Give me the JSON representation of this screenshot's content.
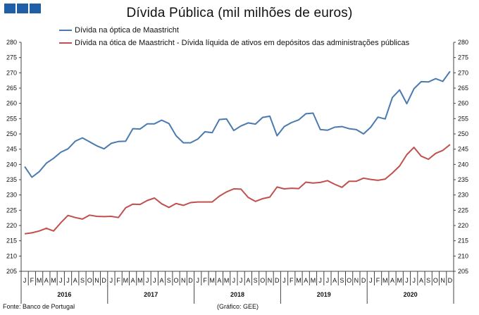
{
  "header": {
    "logo_icon": "three-blue-squares",
    "logo_color": "#1f5fa8"
  },
  "footer": {
    "source": "Fonte: Banco de Portugal",
    "credit": "(Gráfico: GEE)"
  },
  "chart_data": {
    "type": "line",
    "title": "Dívida Pública (mil milhões de euros)",
    "xlabel": "",
    "ylabel": "",
    "ylim": [
      205,
      280
    ],
    "yticks": [
      205,
      210,
      215,
      220,
      225,
      230,
      235,
      240,
      245,
      250,
      255,
      260,
      265,
      270,
      275,
      280
    ],
    "y_axis_sides": "left-and-right",
    "grid": false,
    "legend_position": "top-left",
    "month_labels": [
      "J",
      "F",
      "M",
      "A",
      "M",
      "J",
      "J",
      "A",
      "S",
      "O",
      "N",
      "D"
    ],
    "years": [
      "2016",
      "2017",
      "2018",
      "2019",
      "2020"
    ],
    "series": [
      {
        "name": "Dívida na óptica de Maastricht",
        "color": "#4a7ab0",
        "values": [
          239.3,
          235.8,
          237.6,
          240.4,
          242.0,
          244.0,
          245.1,
          247.6,
          248.7,
          247.4,
          246.1,
          245.1,
          246.9,
          247.5,
          247.6,
          251.7,
          251.6,
          253.3,
          253.3,
          254.5,
          253.4,
          249.4,
          247.1,
          247.1,
          248.3,
          250.7,
          250.4,
          254.7,
          254.9,
          251.1,
          252.6,
          253.6,
          253.2,
          255.4,
          255.8,
          249.4,
          252.4,
          253.7,
          254.6,
          256.6,
          256.8,
          251.4,
          251.2,
          252.2,
          252.4,
          251.7,
          251.4,
          250.0,
          252.2,
          255.5,
          254.9,
          261.9,
          264.4,
          259.9,
          264.8,
          267.1,
          267.0,
          268.1,
          267.2,
          270.5
        ]
      },
      {
        "name": "Dívida na ótica de Maastricht - Dívida líquida de ativos em depósitos das administrações públicas",
        "color": "#c0504d",
        "values": [
          217.3,
          217.6,
          218.2,
          219.1,
          218.2,
          220.9,
          223.3,
          222.6,
          222.1,
          223.4,
          223.0,
          222.9,
          223.0,
          222.6,
          225.8,
          227.0,
          226.9,
          228.2,
          229.0,
          227.1,
          225.9,
          227.2,
          226.6,
          227.5,
          227.7,
          227.7,
          227.7,
          229.6,
          231.0,
          232.0,
          231.9,
          229.2,
          227.9,
          228.8,
          229.3,
          232.6,
          232.0,
          232.2,
          232.1,
          234.2,
          233.9,
          234.1,
          234.7,
          233.5,
          232.5,
          234.5,
          234.5,
          235.5,
          235.1,
          234.8,
          235.2,
          237.2,
          239.5,
          243.2,
          245.6,
          242.7,
          241.7,
          243.6,
          244.6,
          246.5
        ]
      }
    ]
  }
}
